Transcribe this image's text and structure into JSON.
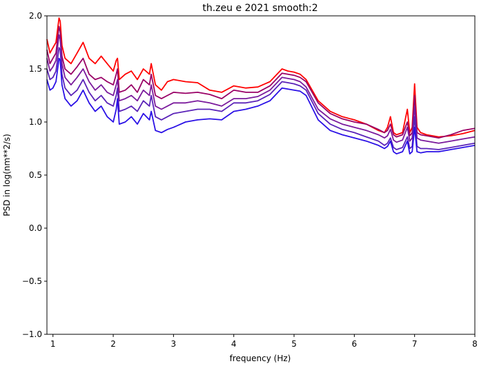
{
  "chart_data": {
    "type": "line",
    "title": "th.zeu e 2021 smooth:2",
    "xlabel": "frequency (Hz)",
    "ylabel": "PSD in log(nm**2/s)",
    "xlim": [
      0.9,
      8.0
    ],
    "ylim": [
      -1.0,
      2.0
    ],
    "xticks": [
      {
        "value": 1,
        "label": "1"
      },
      {
        "value": 2,
        "label": "2"
      },
      {
        "value": 3,
        "label": "3"
      },
      {
        "value": 4,
        "label": "4"
      },
      {
        "value": 5,
        "label": "5"
      },
      {
        "value": 6,
        "label": "6"
      },
      {
        "value": 7,
        "label": "7"
      },
      {
        "value": 8,
        "label": "8"
      }
    ],
    "yticks": [
      {
        "value": -1.0,
        "label": "−1.0"
      },
      {
        "value": -0.5,
        "label": "−0.5"
      },
      {
        "value": 0.0,
        "label": "0.0"
      },
      {
        "value": 0.5,
        "label": "0.5"
      },
      {
        "value": 1.0,
        "label": "1.0"
      },
      {
        "value": 1.5,
        "label": "1.5"
      },
      {
        "value": 2.0,
        "label": "2.0"
      }
    ],
    "grid": false,
    "series": [
      {
        "color": "#ff0000",
        "x": [
          0.9,
          0.95,
          1.0,
          1.05,
          1.1,
          1.12,
          1.15,
          1.2,
          1.3,
          1.4,
          1.5,
          1.6,
          1.7,
          1.8,
          1.9,
          2.0,
          2.05,
          2.07,
          2.1,
          2.2,
          2.3,
          2.4,
          2.5,
          2.6,
          2.63,
          2.7,
          2.8,
          2.9,
          3.0,
          3.2,
          3.4,
          3.6,
          3.8,
          4.0,
          4.2,
          4.4,
          4.6,
          4.8,
          4.9,
          5.0,
          5.1,
          5.2,
          5.4,
          5.6,
          5.8,
          6.0,
          6.2,
          6.4,
          6.5,
          6.55,
          6.6,
          6.65,
          6.7,
          6.8,
          6.88,
          6.92,
          6.96,
          7.0,
          7.04,
          7.1,
          7.2,
          7.4,
          7.6,
          7.8,
          8.0
        ],
        "y": [
          1.78,
          1.65,
          1.7,
          1.75,
          1.98,
          1.95,
          1.72,
          1.6,
          1.55,
          1.65,
          1.75,
          1.6,
          1.55,
          1.62,
          1.55,
          1.48,
          1.58,
          1.6,
          1.4,
          1.45,
          1.48,
          1.4,
          1.5,
          1.45,
          1.55,
          1.35,
          1.3,
          1.38,
          1.4,
          1.38,
          1.37,
          1.3,
          1.28,
          1.34,
          1.32,
          1.33,
          1.38,
          1.5,
          1.48,
          1.47,
          1.45,
          1.4,
          1.2,
          1.1,
          1.05,
          1.02,
          0.98,
          0.92,
          0.9,
          0.95,
          1.05,
          0.9,
          0.88,
          0.9,
          1.12,
          0.9,
          0.95,
          1.36,
          0.95,
          0.9,
          0.88,
          0.86,
          0.87,
          0.89,
          0.92
        ]
      },
      {
        "color": "#990066",
        "x": [
          0.9,
          0.95,
          1.0,
          1.05,
          1.1,
          1.12,
          1.15,
          1.2,
          1.3,
          1.4,
          1.5,
          1.6,
          1.7,
          1.8,
          1.9,
          2.0,
          2.05,
          2.07,
          2.1,
          2.2,
          2.3,
          2.4,
          2.5,
          2.6,
          2.63,
          2.7,
          2.8,
          2.9,
          3.0,
          3.2,
          3.4,
          3.6,
          3.8,
          4.0,
          4.2,
          4.4,
          4.6,
          4.8,
          4.9,
          5.0,
          5.1,
          5.2,
          5.4,
          5.6,
          5.8,
          6.0,
          6.2,
          6.4,
          6.5,
          6.55,
          6.6,
          6.65,
          6.7,
          6.8,
          6.88,
          6.92,
          6.96,
          7.0,
          7.04,
          7.1,
          7.2,
          7.4,
          7.6,
          7.8,
          8.0
        ],
        "y": [
          1.68,
          1.55,
          1.6,
          1.65,
          1.9,
          1.85,
          1.62,
          1.5,
          1.45,
          1.52,
          1.6,
          1.45,
          1.4,
          1.42,
          1.38,
          1.35,
          1.45,
          1.5,
          1.28,
          1.3,
          1.35,
          1.28,
          1.4,
          1.35,
          1.45,
          1.25,
          1.22,
          1.25,
          1.28,
          1.27,
          1.28,
          1.26,
          1.22,
          1.3,
          1.28,
          1.28,
          1.34,
          1.46,
          1.45,
          1.44,
          1.42,
          1.38,
          1.18,
          1.08,
          1.03,
          1.0,
          0.98,
          0.93,
          0.9,
          0.92,
          0.98,
          0.88,
          0.86,
          0.88,
          1.0,
          0.87,
          0.9,
          1.25,
          0.9,
          0.88,
          0.87,
          0.85,
          0.88,
          0.92,
          0.94
        ]
      },
      {
        "color": "#7a1a9c",
        "x": [
          0.9,
          0.95,
          1.0,
          1.05,
          1.1,
          1.12,
          1.15,
          1.2,
          1.3,
          1.4,
          1.5,
          1.6,
          1.7,
          1.8,
          1.9,
          2.0,
          2.05,
          2.07,
          2.1,
          2.2,
          2.3,
          2.4,
          2.5,
          2.6,
          2.63,
          2.7,
          2.8,
          2.9,
          3.0,
          3.2,
          3.4,
          3.6,
          3.8,
          4.0,
          4.2,
          4.4,
          4.6,
          4.8,
          4.9,
          5.0,
          5.1,
          5.2,
          5.4,
          5.6,
          5.8,
          6.0,
          6.2,
          6.4,
          6.5,
          6.55,
          6.6,
          6.65,
          6.7,
          6.8,
          6.88,
          6.92,
          6.96,
          7.0,
          7.04,
          7.1,
          7.2,
          7.4,
          7.6,
          7.8,
          8.0
        ],
        "y": [
          1.6,
          1.48,
          1.52,
          1.58,
          1.82,
          1.78,
          1.55,
          1.42,
          1.35,
          1.42,
          1.5,
          1.38,
          1.3,
          1.35,
          1.28,
          1.25,
          1.35,
          1.4,
          1.2,
          1.22,
          1.25,
          1.2,
          1.3,
          1.25,
          1.35,
          1.15,
          1.12,
          1.15,
          1.18,
          1.18,
          1.2,
          1.18,
          1.15,
          1.22,
          1.22,
          1.24,
          1.3,
          1.42,
          1.41,
          1.4,
          1.38,
          1.33,
          1.12,
          1.03,
          0.98,
          0.95,
          0.92,
          0.88,
          0.85,
          0.87,
          0.93,
          0.83,
          0.81,
          0.83,
          0.95,
          0.82,
          0.85,
          1.15,
          0.85,
          0.83,
          0.82,
          0.8,
          0.82,
          0.84,
          0.86
        ]
      },
      {
        "color": "#5a22b8",
        "x": [
          0.9,
          0.95,
          1.0,
          1.05,
          1.1,
          1.12,
          1.15,
          1.2,
          1.3,
          1.4,
          1.5,
          1.6,
          1.7,
          1.8,
          1.9,
          2.0,
          2.05,
          2.07,
          2.1,
          2.2,
          2.3,
          2.4,
          2.5,
          2.6,
          2.63,
          2.7,
          2.8,
          2.9,
          3.0,
          3.2,
          3.4,
          3.6,
          3.8,
          4.0,
          4.2,
          4.4,
          4.6,
          4.8,
          4.9,
          5.0,
          5.1,
          5.2,
          5.4,
          5.6,
          5.8,
          6.0,
          6.2,
          6.4,
          6.5,
          6.55,
          6.6,
          6.65,
          6.7,
          6.8,
          6.88,
          6.92,
          6.96,
          7.0,
          7.04,
          7.1,
          7.2,
          7.4,
          7.6,
          7.8,
          8.0
        ],
        "y": [
          1.5,
          1.4,
          1.42,
          1.48,
          1.7,
          1.68,
          1.45,
          1.32,
          1.25,
          1.3,
          1.4,
          1.28,
          1.2,
          1.25,
          1.18,
          1.15,
          1.25,
          1.32,
          1.1,
          1.12,
          1.15,
          1.1,
          1.2,
          1.15,
          1.25,
          1.05,
          1.02,
          1.05,
          1.08,
          1.1,
          1.12,
          1.12,
          1.1,
          1.18,
          1.18,
          1.2,
          1.26,
          1.38,
          1.37,
          1.36,
          1.34,
          1.3,
          1.08,
          0.98,
          0.93,
          0.9,
          0.86,
          0.82,
          0.78,
          0.8,
          0.85,
          0.76,
          0.74,
          0.76,
          0.86,
          0.75,
          0.77,
          1.05,
          0.77,
          0.75,
          0.75,
          0.74,
          0.76,
          0.78,
          0.8
        ]
      },
      {
        "color": "#2a10e6",
        "x": [
          0.9,
          0.95,
          1.0,
          1.05,
          1.1,
          1.12,
          1.15,
          1.2,
          1.3,
          1.4,
          1.5,
          1.6,
          1.7,
          1.8,
          1.9,
          2.0,
          2.05,
          2.07,
          2.1,
          2.2,
          2.3,
          2.4,
          2.5,
          2.6,
          2.63,
          2.7,
          2.8,
          2.9,
          3.0,
          3.2,
          3.4,
          3.6,
          3.8,
          4.0,
          4.2,
          4.4,
          4.6,
          4.8,
          4.9,
          5.0,
          5.1,
          5.2,
          5.4,
          5.6,
          5.8,
          6.0,
          6.2,
          6.4,
          6.5,
          6.55,
          6.6,
          6.65,
          6.7,
          6.8,
          6.88,
          6.92,
          6.96,
          7.0,
          7.04,
          7.1,
          7.2,
          7.4,
          7.6,
          7.8,
          8.0
        ],
        "y": [
          1.4,
          1.3,
          1.32,
          1.38,
          1.6,
          1.58,
          1.35,
          1.22,
          1.15,
          1.2,
          1.3,
          1.18,
          1.1,
          1.15,
          1.05,
          1.0,
          1.12,
          1.22,
          0.98,
          1.0,
          1.05,
          0.98,
          1.08,
          1.02,
          1.1,
          0.92,
          0.9,
          0.93,
          0.95,
          1.0,
          1.02,
          1.03,
          1.02,
          1.1,
          1.12,
          1.15,
          1.2,
          1.32,
          1.31,
          1.3,
          1.29,
          1.25,
          1.02,
          0.92,
          0.88,
          0.85,
          0.82,
          0.78,
          0.75,
          0.77,
          0.82,
          0.72,
          0.7,
          0.72,
          0.82,
          0.7,
          0.72,
          0.95,
          0.72,
          0.71,
          0.72,
          0.72,
          0.74,
          0.76,
          0.78
        ]
      }
    ]
  }
}
